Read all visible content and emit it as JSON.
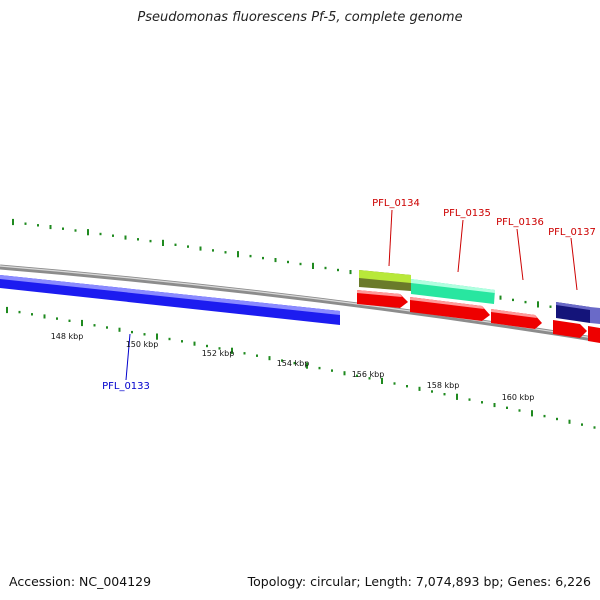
{
  "title": "Pseudomonas fluorescens Pf-5, complete genome",
  "footer": {
    "accession": "Accession: NC_004129",
    "summary": "Topology: circular; Length: 7,074,893 bp; Genes: 6,226"
  },
  "colors": {
    "backbone": "#8c8c8c",
    "tick": "#1f8a1f",
    "gene_blue": "#1c1cf0",
    "gene_red": "#ee0000",
    "gene_lime": "#a8dc2a",
    "gene_teal": "#28e6a0",
    "gene_navy": "#14147a",
    "label_red": "#cc0000",
    "label_blue": "#0000cc"
  },
  "scale": {
    "unit": "kbp",
    "labels": [
      "148 kbp",
      "150 kbp",
      "152 kbp",
      "154 kbp",
      "156 kbp",
      "158 kbp",
      "160 kbp"
    ]
  },
  "genes": [
    {
      "id": "PFL_0133",
      "label": "PFL_0133",
      "label_color": "blue"
    },
    {
      "id": "PFL_0134",
      "label": "PFL_0134",
      "label_color": "red"
    },
    {
      "id": "PFL_0135",
      "label": "PFL_0135",
      "label_color": "red"
    },
    {
      "id": "PFL_0136",
      "label": "PFL_0136",
      "label_color": "red"
    },
    {
      "id": "PFL_0137",
      "label": "PFL_0137",
      "label_color": "red"
    }
  ]
}
